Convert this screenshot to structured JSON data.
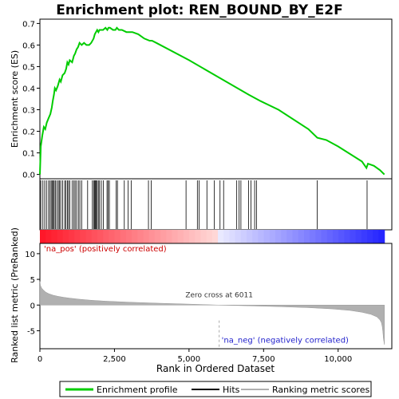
{
  "chart_data": {
    "type": "line",
    "title": "Enrichment plot: REN_BOUND_BY_E2F",
    "xlabel": "Rank in Ordered Dataset",
    "xlim": [
      0,
      11800
    ],
    "xticks": [
      0,
      2500,
      5000,
      7500,
      10000
    ],
    "xtick_labels": [
      "0",
      "2,500",
      "5,000",
      "7,500",
      "10,000"
    ],
    "top_panel": {
      "ylabel": "Enrichment score (ES)",
      "ylim": [
        -0.02,
        0.72
      ],
      "yticks": [
        0.0,
        0.1,
        0.2,
        0.3,
        0.4,
        0.5,
        0.6,
        0.7
      ],
      "ytick_labels": [
        "0.0",
        "0.1",
        "0.2",
        "0.3",
        "0.4",
        "0.5",
        "0.6",
        "0.7"
      ],
      "line_color": "#00cc00",
      "series": [
        {
          "name": "Enrichment profile",
          "x": [
            0,
            30,
            80,
            130,
            180,
            230,
            290,
            350,
            400,
            430,
            470,
            500,
            540,
            600,
            660,
            700,
            760,
            830,
            880,
            920,
            960,
            1000,
            1080,
            1140,
            1180,
            1230,
            1280,
            1330,
            1400,
            1480,
            1560,
            1650,
            1720,
            1800,
            1840,
            1880,
            1920,
            1960,
            2000,
            2050,
            2120,
            2200,
            2260,
            2300,
            2350,
            2450,
            2530,
            2580,
            2650,
            2750,
            2900,
            3100,
            3300,
            3500,
            3680,
            3760,
            3900,
            5000,
            6000,
            7000,
            7400,
            8000,
            9000,
            9300,
            9600,
            10000,
            10800,
            10950,
            11000,
            11200,
            11400,
            11550
          ],
          "y": [
            0.0,
            0.13,
            0.18,
            0.22,
            0.21,
            0.24,
            0.26,
            0.28,
            0.31,
            0.34,
            0.37,
            0.4,
            0.39,
            0.41,
            0.44,
            0.43,
            0.46,
            0.47,
            0.49,
            0.52,
            0.51,
            0.53,
            0.52,
            0.55,
            0.56,
            0.58,
            0.59,
            0.61,
            0.6,
            0.61,
            0.6,
            0.6,
            0.61,
            0.63,
            0.65,
            0.66,
            0.67,
            0.66,
            0.67,
            0.67,
            0.67,
            0.68,
            0.67,
            0.68,
            0.68,
            0.67,
            0.67,
            0.68,
            0.67,
            0.67,
            0.66,
            0.66,
            0.65,
            0.63,
            0.62,
            0.62,
            0.61,
            0.53,
            0.45,
            0.37,
            0.34,
            0.3,
            0.21,
            0.17,
            0.16,
            0.13,
            0.06,
            0.03,
            0.05,
            0.04,
            0.02,
            0.0
          ]
        }
      ]
    },
    "hits_panel": {
      "legend_name": "Hits",
      "hit_positions": [
        30,
        100,
        160,
        220,
        290,
        340,
        380,
        420,
        450,
        480,
        520,
        570,
        620,
        660,
        700,
        760,
        830,
        870,
        920,
        960,
        1000,
        1080,
        1140,
        1180,
        1230,
        1290,
        1340,
        1400,
        1600,
        1760,
        1800,
        1830,
        1860,
        1890,
        1920,
        1960,
        2000,
        2060,
        2130,
        2250,
        2290,
        2330,
        2560,
        2600,
        2830,
        2960,
        3060,
        3640,
        3730,
        4900,
        5280,
        5340,
        5600,
        5850,
        6040,
        6160,
        6600,
        6680,
        6740,
        7000,
        7080,
        7200,
        7260,
        9300,
        10970
      ]
    },
    "rank_panel": {
      "ylabel": "Ranked list metric (PreRanked)",
      "ylim": [
        -8.5,
        12
      ],
      "yticks": [
        -5,
        0,
        5,
        10
      ],
      "ytick_labels": [
        "-5",
        "0",
        "5",
        "10"
      ],
      "legend_name": "Ranking metric scores",
      "x": [
        0,
        20,
        60,
        120,
        200,
        300,
        450,
        600,
        800,
        1000,
        1300,
        1700,
        2200,
        3000,
        4000,
        5000,
        6011,
        7000,
        8000,
        9000,
        9800,
        10400,
        10800,
        11100,
        11300,
        11400,
        11450,
        11480,
        11500,
        11520,
        11550
      ],
      "values": [
        4.6,
        3.8,
        3.3,
        2.9,
        2.5,
        2.2,
        1.9,
        1.7,
        1.5,
        1.35,
        1.15,
        0.95,
        0.75,
        0.55,
        0.35,
        0.18,
        0.0,
        -0.15,
        -0.3,
        -0.5,
        -0.75,
        -1.05,
        -1.4,
        -1.8,
        -2.3,
        -2.9,
        -3.4,
        -4.2,
        -5.2,
        -6.5,
        -7.7
      ],
      "labels": {
        "positive": "'na_pos' (positively correlated)",
        "negative": "'na_neg' (negatively correlated)",
        "zero_cross": "Zero cross at 6011"
      },
      "zero_cross_x": 6011
    },
    "legend": {
      "placement": "bottom",
      "entries": [
        {
          "name": "Enrichment profile",
          "color": "#00cc00"
        },
        {
          "name": "Hits",
          "color": "#000000"
        },
        {
          "name": "Ranking metric scores",
          "color": "#b0b0b0"
        }
      ]
    }
  }
}
